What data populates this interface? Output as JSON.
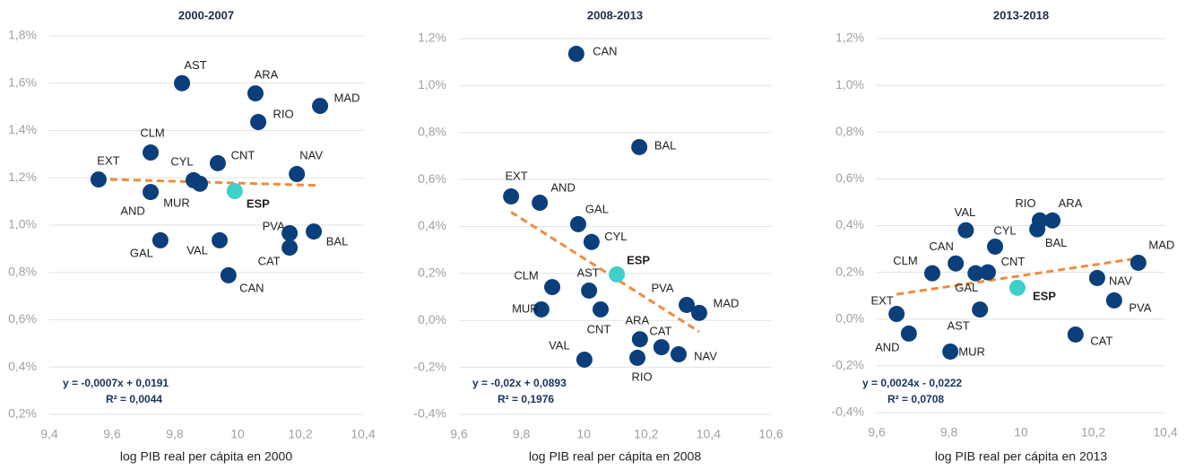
{
  "chart_data": [
    {
      "type": "scatter",
      "title": "2000-2007",
      "x_label": "log PIB real per cápita en 2000",
      "labels": [
        "AST",
        "ARA",
        "MAD",
        "RIO",
        "CLM",
        "CNT",
        "EXT",
        "CYL",
        "MUR",
        "AND",
        "ESP",
        "NAV",
        "PVA",
        "BAL",
        "CAT",
        "GAL",
        "VAL",
        "CAN"
      ],
      "x": [
        9.823,
        10.057,
        10.263,
        10.066,
        9.723,
        9.937,
        9.557,
        9.86,
        9.88,
        9.723,
        9.991,
        10.189,
        10.166,
        10.243,
        10.166,
        9.754,
        9.943,
        9.971
      ],
      "values": [
        1.6,
        1.557,
        1.504,
        1.436,
        1.307,
        1.262,
        1.193,
        1.19,
        1.175,
        1.14,
        1.144,
        1.216,
        0.966,
        0.973,
        0.905,
        0.936,
        0.936,
        0.788
      ],
      "color": "#0b3f7c",
      "colors": [
        "#0b3f7c",
        "#0b3f7c",
        "#0b3f7c",
        "#0b3f7c",
        "#0b3f7c",
        "#0b3f7c",
        "#0b3f7c",
        "#0b3f7c",
        "#0b3f7c",
        "#0b3f7c",
        "#3fd0cc",
        "#0b3f7c",
        "#0b3f7c",
        "#0b3f7c",
        "#0b3f7c",
        "#0b3f7c",
        "#0b3f7c",
        "#0b3f7c"
      ],
      "trendline": true,
      "trend_color": "#f08c3a",
      "annotations": [
        "y = -0,0007x + 0,0191",
        "R² = 0,0044"
      ],
      "xlim": [
        9.4,
        10.4
      ],
      "xticks": [
        {
          "value": 9.4,
          "label": "9,4"
        },
        {
          "value": 9.6,
          "label": "9,6"
        },
        {
          "value": 9.8,
          "label": "9,8"
        },
        10,
        {
          "value": 10.2,
          "label": "10,2"
        },
        {
          "value": 10.4,
          "label": "10,4"
        }
      ],
      "ylim": [
        0.2,
        1.8
      ],
      "yticks": [
        {
          "value": 0.2,
          "label": "0,2%"
        },
        {
          "value": 0.4,
          "label": "0,4%"
        },
        {
          "value": 0.6,
          "label": "0,6%"
        },
        {
          "value": 0.8,
          "label": "0,8%"
        },
        {
          "value": 1.0,
          "label": "1,0%"
        },
        {
          "value": 1.2,
          "label": "1,2%"
        },
        {
          "value": 1.4,
          "label": "1,4%"
        },
        {
          "value": 1.6,
          "label": "1,6%"
        },
        {
          "value": 1.8,
          "label": "1,8%"
        }
      ],
      "grid": true
    },
    {
      "type": "scatter",
      "title": "2008-2013",
      "x_label": "log PIB real per cápita en 2008",
      "labels": [
        "CAN",
        "BAL",
        "EXT",
        "AND",
        "GAL",
        "CYL",
        "ESP",
        "CLM",
        "AST",
        "MUR",
        "CNT",
        "PVA",
        "MAD",
        "ARA",
        "CAT",
        "NAV",
        "VAL",
        "RIO"
      ],
      "x": [
        9.976,
        10.178,
        9.767,
        9.859,
        9.982,
        10.025,
        10.106,
        9.899,
        10.017,
        9.864,
        10.054,
        10.33,
        10.37,
        10.18,
        10.249,
        10.304,
        10.002,
        10.172
      ],
      "values": [
        1.135,
        0.738,
        0.528,
        0.501,
        0.41,
        0.334,
        0.196,
        0.142,
        0.127,
        0.047,
        0.047,
        0.066,
        0.032,
        -0.08,
        -0.114,
        -0.144,
        -0.167,
        -0.159
      ],
      "color": "#0b3f7c",
      "colors": [
        "#0b3f7c",
        "#0b3f7c",
        "#0b3f7c",
        "#0b3f7c",
        "#0b3f7c",
        "#0b3f7c",
        "#3fd0cc",
        "#0b3f7c",
        "#0b3f7c",
        "#0b3f7c",
        "#0b3f7c",
        "#0b3f7c",
        "#0b3f7c",
        "#0b3f7c",
        "#0b3f7c",
        "#0b3f7c",
        "#0b3f7c",
        "#0b3f7c"
      ],
      "trendline": true,
      "trend_color": "#f08c3a",
      "annotations": [
        "y = -0,02x + 0,0893",
        "R² = 0,1976"
      ],
      "xlim": [
        9.6,
        10.6
      ],
      "xticks": [
        {
          "value": 9.6,
          "label": "9,6"
        },
        {
          "value": 9.8,
          "label": "9,8"
        },
        10,
        {
          "value": 10.2,
          "label": "10,2"
        },
        {
          "value": 10.4,
          "label": "10,4"
        },
        {
          "value": 10.6,
          "label": "10,6"
        }
      ],
      "ylim": [
        -0.4,
        1.2
      ],
      "yticks": [
        {
          "value": -0.4,
          "label": "-0,4%"
        },
        {
          "value": -0.2,
          "label": "-0,2%"
        },
        {
          "value": 0,
          "label": "0,0%"
        },
        {
          "value": 0.2,
          "label": "0,2%"
        },
        {
          "value": 0.4,
          "label": "0,4%"
        },
        {
          "value": 0.6,
          "label": "0,6%"
        },
        {
          "value": 0.8,
          "label": "0,8%"
        },
        {
          "value": 1.0,
          "label": "1,0%"
        },
        {
          "value": 1.2,
          "label": "1,2%"
        }
      ],
      "grid": true
    },
    {
      "type": "scatter",
      "title": "2013-2018",
      "x_label": "log PIB real per cápita en 2013",
      "labels": [
        "EXT",
        "AND",
        "MUR",
        "CLM",
        "CAN",
        "VAL",
        "CYL",
        "GAL",
        "CNT",
        "AST",
        "RIO",
        "ARA",
        "BAL",
        "ESP",
        "MAD",
        "NAV",
        "PVA",
        "CAT"
      ],
      "x": [
        9.655,
        9.689,
        9.804,
        9.754,
        9.819,
        9.847,
        9.928,
        9.874,
        9.908,
        9.886,
        10.052,
        10.087,
        10.045,
        9.99,
        10.325,
        10.211,
        10.258,
        10.151
      ],
      "values": [
        0.022,
        -0.062,
        -0.139,
        0.196,
        0.238,
        0.38,
        0.31,
        0.196,
        0.2,
        0.041,
        0.422,
        0.422,
        0.384,
        0.134,
        0.241,
        0.176,
        0.08,
        -0.066
      ],
      "color": "#0b3f7c",
      "colors": [
        "#0b3f7c",
        "#0b3f7c",
        "#0b3f7c",
        "#0b3f7c",
        "#0b3f7c",
        "#0b3f7c",
        "#0b3f7c",
        "#0b3f7c",
        "#0b3f7c",
        "#0b3f7c",
        "#0b3f7c",
        "#0b3f7c",
        "#0b3f7c",
        "#3fd0cc",
        "#0b3f7c",
        "#0b3f7c",
        "#0b3f7c",
        "#0b3f7c"
      ],
      "trendline": true,
      "trend_color": "#f08c3a",
      "annotations": [
        "y = 0,0024x - 0,0222",
        "R² = 0,0708"
      ],
      "xlim": [
        9.6,
        10.4
      ],
      "xticks": [
        {
          "value": 9.6,
          "label": "9,6"
        },
        {
          "value": 9.8,
          "label": "9,8"
        },
        10,
        {
          "value": 10.2,
          "label": "10,2"
        },
        {
          "value": 10.4,
          "label": "10,4"
        }
      ],
      "ylim": [
        -0.4,
        1.2
      ],
      "yticks": [
        {
          "value": -0.4,
          "label": "-0,4%"
        },
        {
          "value": -0.2,
          "label": "-0,2%"
        },
        {
          "value": 0,
          "label": "0,0%"
        },
        {
          "value": 0.2,
          "label": "0,2%"
        },
        {
          "value": 0.4,
          "label": "0,4%"
        },
        {
          "value": 0.6,
          "label": "0,6%"
        },
        {
          "value": 0.8,
          "label": "0,8%"
        },
        {
          "value": 1.0,
          "label": "1,0%"
        },
        {
          "value": 1.2,
          "label": "1,2%"
        }
      ],
      "grid": true
    }
  ]
}
